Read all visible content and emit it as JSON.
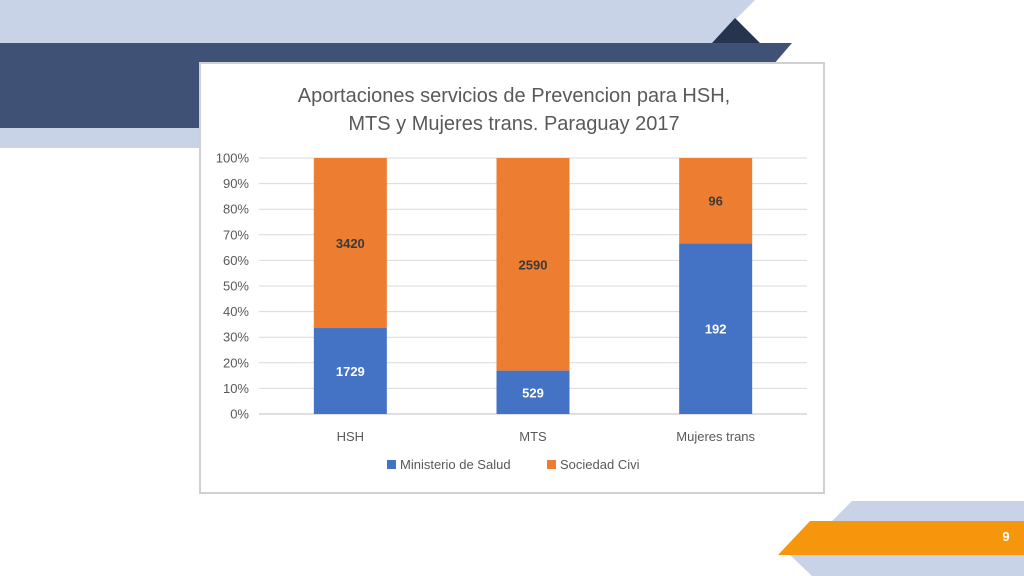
{
  "slide": {
    "page_number": "9",
    "colors": {
      "band_light": "#c8d3e7",
      "band_dark": "#3f5174",
      "accent_dark": "#26344f",
      "orange_ribbon": "#f6960c"
    }
  },
  "chart_data": {
    "type": "bar",
    "stacked": "percent",
    "title": "Aportaciones servicios de Prevencion para HSH, MTS y Mujeres trans. Paraguay 2017",
    "title_lines": [
      "Aportaciones servicios de Prevencion para HSH,",
      "MTS y Mujeres trans. Paraguay 2017"
    ],
    "categories": [
      "HSH",
      "MTS",
      "Mujeres trans"
    ],
    "series": [
      {
        "name": "Ministerio de Salud",
        "values": [
          1729,
          529,
          192
        ],
        "color": "#4472c4",
        "label_color": "#ffffff"
      },
      {
        "name": "Sociedad Civi",
        "values": [
          3420,
          2590,
          96
        ],
        "color": "#ed7d31",
        "label_color": "#3a3a3a"
      }
    ],
    "y_ticks": [
      "0%",
      "10%",
      "20%",
      "30%",
      "40%",
      "50%",
      "60%",
      "70%",
      "80%",
      "90%",
      "100%"
    ],
    "ylim": [
      0,
      100
    ],
    "grid": true,
    "legend": "bottom"
  }
}
